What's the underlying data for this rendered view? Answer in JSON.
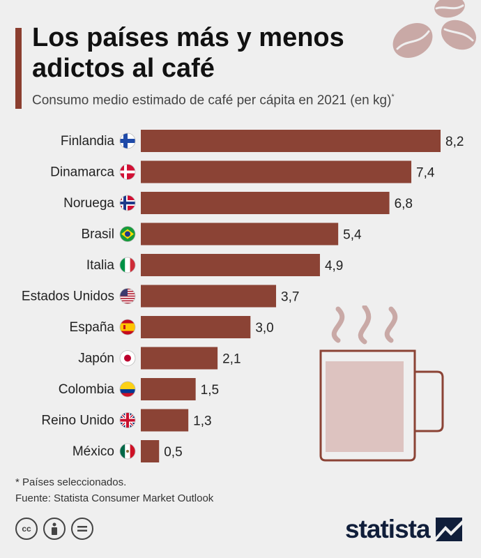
{
  "title": "Los países más y menos adictos al café",
  "subtitle": "Consumo medio estimado de café per cápita en 2021 (en kg)",
  "subtitle_marker": "*",
  "footnote": "* Países seleccionados.",
  "source": "Fuente: Statista Consumer Market Outlook",
  "brand": "statista",
  "colors": {
    "bar": "#8b4335",
    "accent": "#8b3e2f",
    "background": "#efefef",
    "illustration": "#c9a9a6"
  },
  "license_icons": [
    "cc-icon",
    "attribution-icon",
    "no-derivatives-icon"
  ],
  "chart_data": {
    "type": "bar",
    "orientation": "horizontal",
    "title": "Los países más y menos adictos al café",
    "subtitle": "Consumo medio estimado de café per cápita en 2021 (en kg)",
    "categories": [
      "Finlandia",
      "Dinamarca",
      "Noruega",
      "Brasil",
      "Italia",
      "Estados Unidos",
      "España",
      "Japón",
      "Colombia",
      "Reino Unido",
      "México"
    ],
    "value_labels": [
      "8,2",
      "7,4",
      "6,8",
      "5,4",
      "4,9",
      "3,7",
      "3,0",
      "2,1",
      "1,5",
      "1,3",
      "0,5"
    ],
    "flags": [
      "finland",
      "denmark",
      "norway",
      "brazil",
      "italy",
      "usa",
      "spain",
      "japan",
      "colombia",
      "uk",
      "mexico"
    ],
    "series": [
      {
        "values": [
          8.2,
          7.4,
          6.8,
          5.4,
          4.9,
          3.7,
          3.0,
          2.1,
          1.5,
          1.3,
          0.5
        ]
      }
    ],
    "xlim": [
      0,
      8.2
    ],
    "grid": false,
    "legend": "none"
  }
}
